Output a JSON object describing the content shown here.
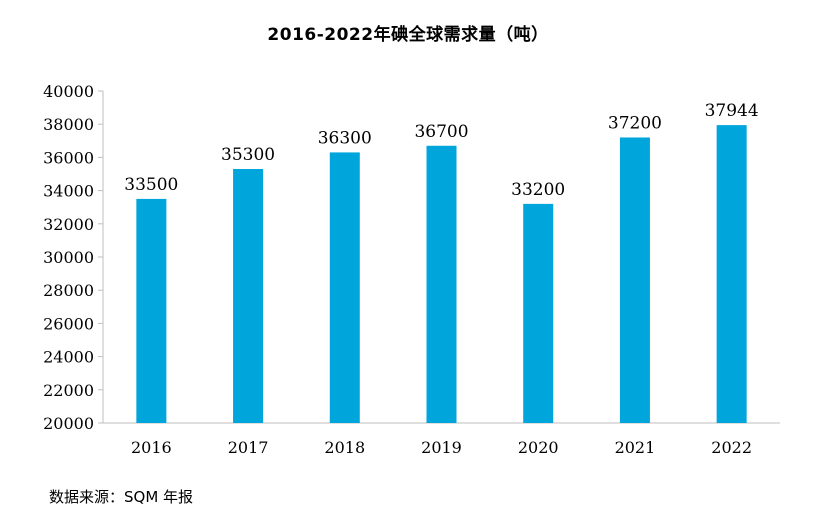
{
  "chart_data": {
    "type": "bar",
    "title": "2016-2022年碘全球需求量（吨）",
    "categories": [
      "2016",
      "2017",
      "2018",
      "2019",
      "2020",
      "2021",
      "2022"
    ],
    "values": [
      33500,
      35300,
      36300,
      36700,
      33200,
      37200,
      37944
    ],
    "data_labels": [
      "33500",
      "35300",
      "36300",
      "36700",
      "33200",
      "37200",
      "37944"
    ],
    "ylim": [
      20000,
      40000
    ],
    "yticks": [
      20000,
      22000,
      24000,
      26000,
      28000,
      30000,
      32000,
      34000,
      36000,
      38000,
      40000
    ],
    "xlabel": "",
    "ylabel": "",
    "grid": false,
    "legend": "none",
    "bar_color": "#00A5DC"
  },
  "source": "数据来源：SQM 年报"
}
